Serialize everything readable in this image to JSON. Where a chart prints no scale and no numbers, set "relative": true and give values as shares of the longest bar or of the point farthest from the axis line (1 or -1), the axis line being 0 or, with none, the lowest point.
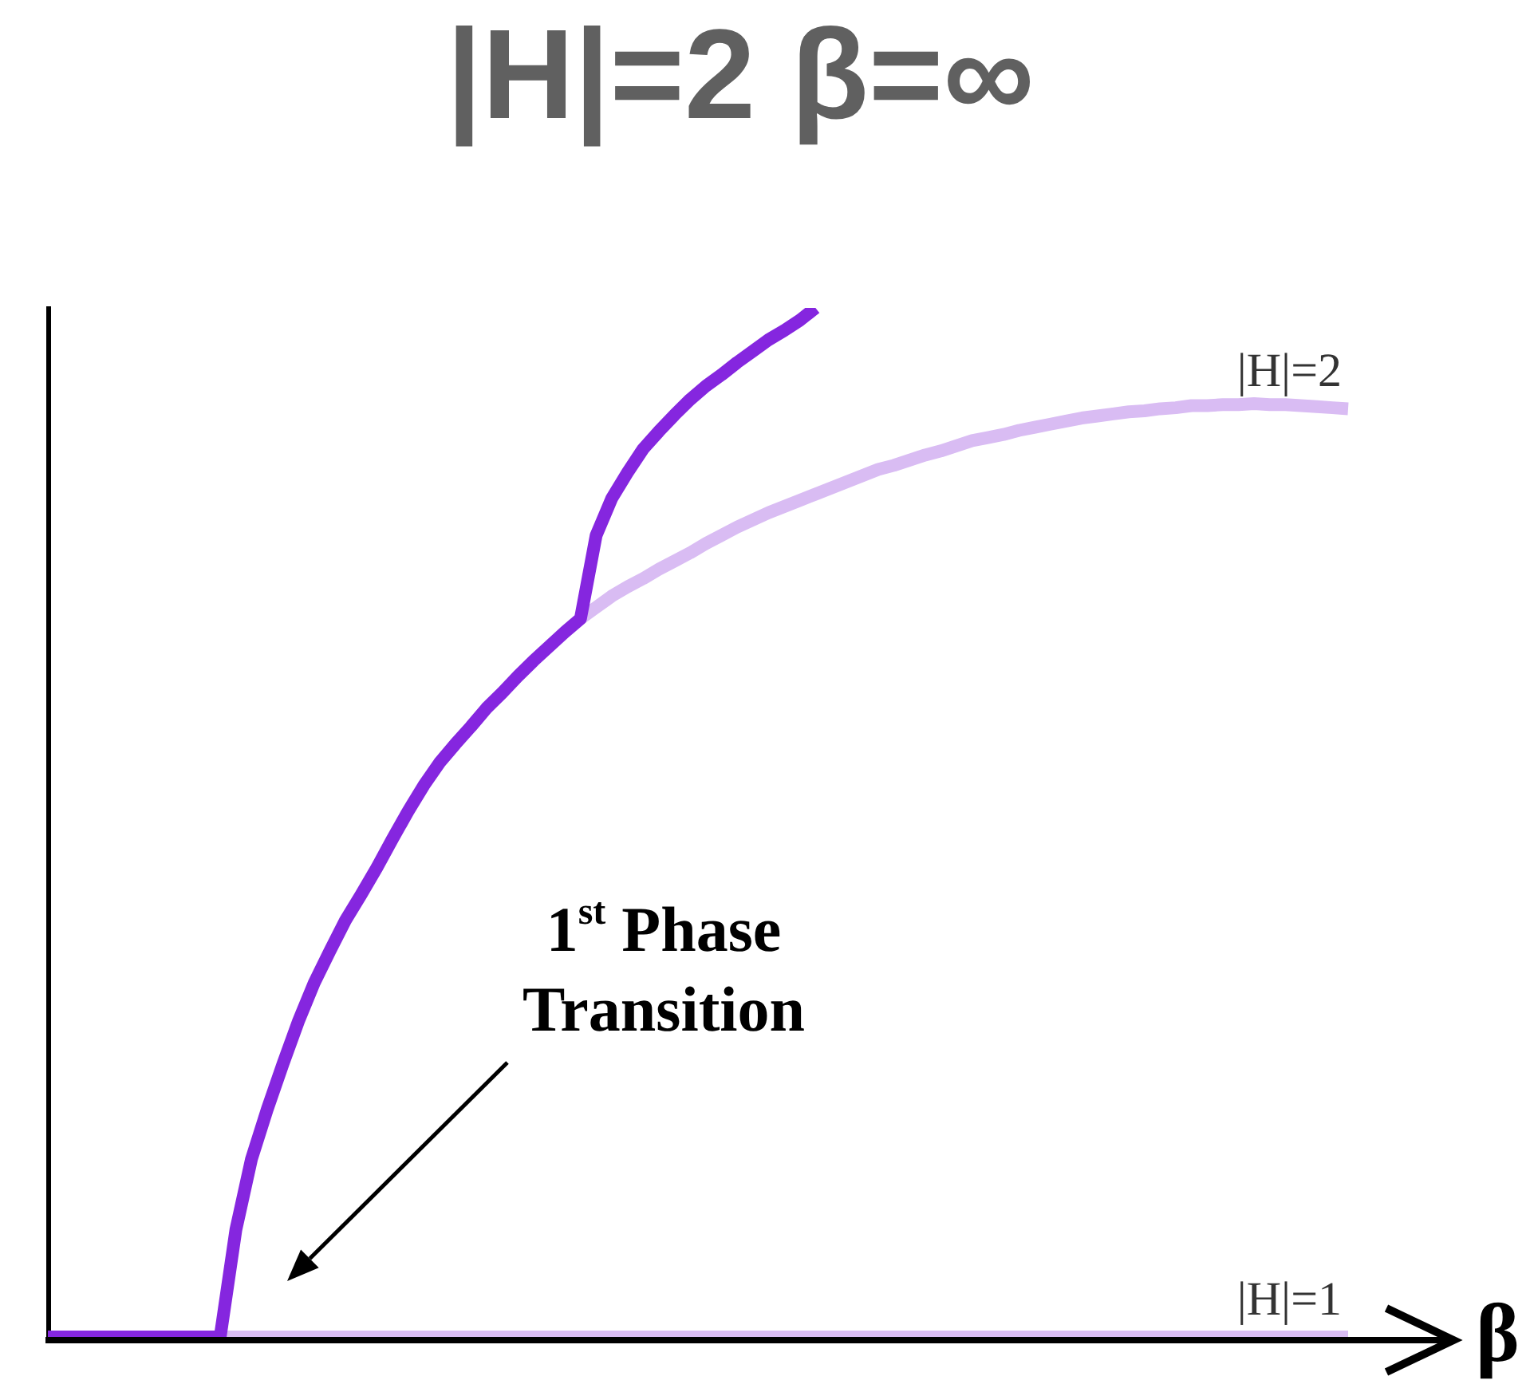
{
  "chart_data": {
    "type": "line",
    "title": "|H|=2 β=∞",
    "xlabel": "β",
    "relative": true,
    "marker": "none",
    "line_style": "solid",
    "annotations": [
      "1$^{st}$ Phase Transition"
    ],
    "categories": [
      null,
      null,
      null,
      null,
      null,
      null,
      null,
      null,
      null,
      null,
      null,
      null,
      null,
      null,
      null,
      null,
      null,
      null,
      null,
      null,
      null,
      null,
      null,
      null,
      null,
      null,
      null,
      null,
      null,
      null,
      null,
      null,
      null,
      null,
      null,
      null,
      null,
      null,
      null,
      null,
      null,
      null,
      null,
      null,
      null,
      null,
      null,
      null,
      null,
      null,
      null,
      null,
      null,
      null,
      null,
      null,
      null,
      null,
      null,
      null,
      null,
      null,
      null,
      null,
      null,
      null,
      null,
      null,
      null,
      null,
      null,
      null,
      null,
      null,
      null,
      null,
      null,
      null,
      null,
      null,
      null,
      null,
      null,
      null
    ],
    "series": [
      {
        "color": "#8526df",
        "values": [
          0,
          0,
          0,
          0,
          0,
          0,
          0,
          0,
          0,
          0,
          0,
          0,
          0.104,
          0.173,
          0.221,
          0.265,
          0.307,
          0.344,
          0.375,
          0.405,
          0.43,
          0.456,
          0.484,
          0.511,
          0.536,
          0.558,
          0.576,
          0.593,
          0.611,
          0.626,
          0.642,
          0.657,
          0.671,
          0.685,
          0.698,
          0.779,
          0.815,
          0.84,
          0.863,
          0.88,
          0.896,
          0.911,
          0.924,
          0.935,
          0.947,
          0.958,
          0.969,
          0.978,
          0.988,
          1,
          null,
          null,
          null,
          null,
          null,
          null,
          null,
          null,
          null,
          null,
          null,
          null,
          null,
          null,
          null,
          null,
          null,
          null,
          null,
          null,
          null,
          null,
          null,
          null,
          null,
          null,
          null,
          null,
          null,
          null,
          null,
          null,
          null,
          null
        ]
      },
      {
        "name": "|H|=2",
        "color": "#d9bcf3",
        "values": [
          null,
          null,
          null,
          null,
          null,
          null,
          null,
          null,
          null,
          null,
          null,
          null,
          null,
          null,
          null,
          null,
          null,
          null,
          null,
          null,
          null,
          null,
          null,
          null,
          null,
          null,
          null,
          null,
          null,
          null,
          null,
          null,
          null,
          null,
          0.698,
          0.709,
          0.72,
          0.729,
          0.737,
          0.746,
          0.754,
          0.762,
          0.771,
          0.779,
          0.787,
          0.794,
          0.801,
          0.807,
          0.813,
          0.819,
          0.825,
          0.831,
          0.837,
          0.843,
          0.847,
          0.852,
          0.857,
          0.861,
          0.866,
          0.871,
          0.874,
          0.877,
          0.881,
          0.884,
          0.887,
          0.89,
          0.893,
          0.895,
          0.897,
          0.899,
          0.9,
          0.902,
          0.903,
          0.905,
          0.905,
          0.906,
          0.906,
          0.907,
          0.906,
          0.906,
          0.905,
          0.904,
          0.903,
          0.902
        ]
      },
      {
        "name": "|H|=1",
        "color": "#d9bcf3",
        "values": [
          null,
          null,
          null,
          null,
          null,
          null,
          null,
          null,
          null,
          null,
          null,
          0,
          0,
          0,
          0,
          0,
          0,
          0,
          0,
          0,
          0,
          0,
          0,
          0,
          0,
          0,
          0,
          0,
          0,
          0,
          0,
          0,
          0,
          0,
          0,
          0,
          0,
          0,
          0,
          0,
          0,
          0,
          0,
          0,
          0,
          0,
          0,
          0,
          0,
          0,
          0,
          0,
          0,
          0,
          0,
          0,
          0,
          0,
          0,
          0,
          0,
          0,
          0,
          0,
          0,
          0,
          0,
          0,
          0,
          0,
          0,
          0,
          0,
          0,
          0,
          0,
          0,
          0,
          0,
          0,
          0,
          0,
          0,
          0
        ]
      }
    ]
  }
}
